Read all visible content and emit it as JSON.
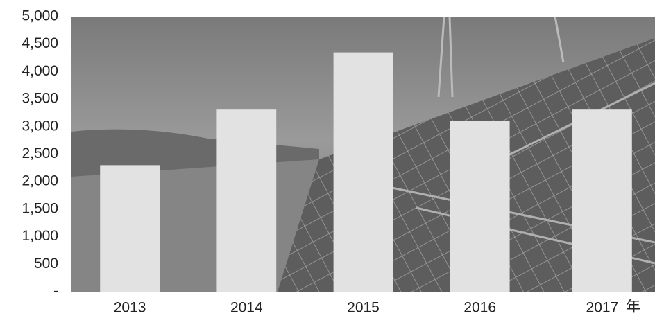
{
  "chart_data": {
    "type": "bar",
    "categories": [
      "2013",
      "2014",
      "2015",
      "2016",
      "2017"
    ],
    "values": [
      2300,
      3310,
      4350,
      3110,
      3310
    ],
    "color": "#e2e2e2",
    "x_label": "年",
    "ylim": [
      0,
      5000
    ],
    "yticks": [
      {
        "value": 0,
        "label": "-"
      },
      500,
      {
        "value": 1000,
        "label": "1,000"
      },
      {
        "value": 1500,
        "label": "1,500"
      },
      {
        "value": 2000,
        "label": "2,000"
      },
      {
        "value": 2500,
        "label": "2,500"
      },
      {
        "value": 3000,
        "label": "3,000"
      },
      {
        "value": 3500,
        "label": "3,500"
      },
      {
        "value": 4000,
        "label": "4,000"
      },
      {
        "value": 4500,
        "label": "4,500"
      },
      {
        "value": 5000,
        "label": "5,000"
      }
    ]
  }
}
